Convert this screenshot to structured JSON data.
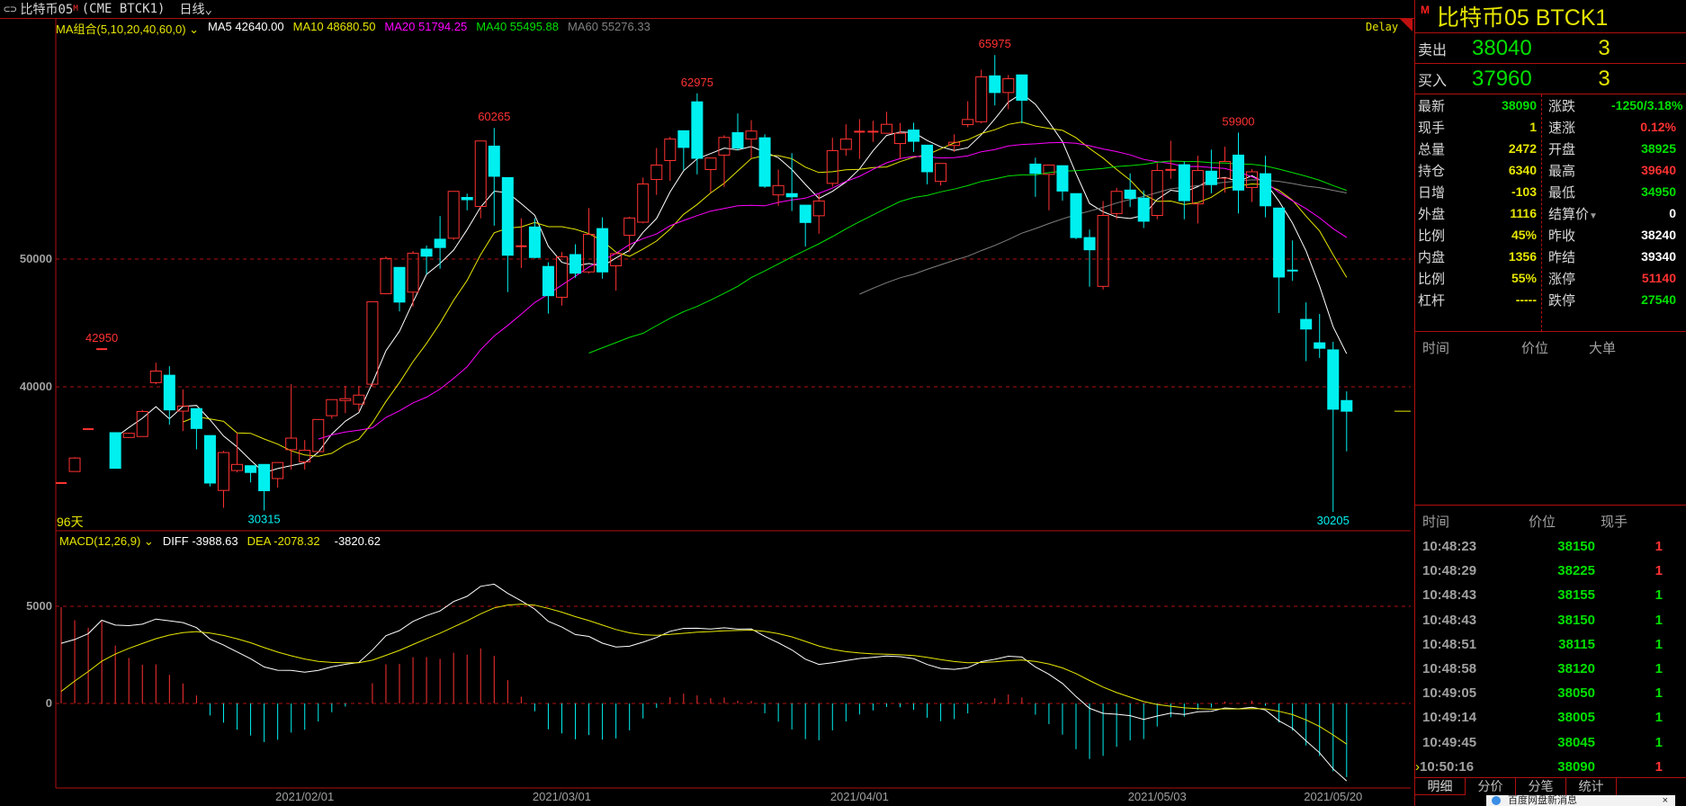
{
  "topbar": {
    "name": "比特币05",
    "badge": "M",
    "code": "(CME BTCK1)",
    "period": "日线"
  },
  "ma_header": {
    "title": "MA组合(5,10,20,40,60,0)",
    "ma5": "MA5 42640.00",
    "ma10": "MA10 48680.50",
    "ma20": "MA20 51794.25",
    "ma40": "MA40 55495.88",
    "ma60": "MA60 55276.33"
  },
  "delay": "Delay",
  "days_label": "96天",
  "macd_header": {
    "title": "MACD(12,26,9)",
    "diff": "DIFF -3988.63",
    "dea": "DEA -2078.32",
    "macd": "-3820.62"
  },
  "colors": {
    "up": "#ff3232",
    "down": "#00f0f0",
    "ma5": "#ffffff",
    "ma10": "#e6e600",
    "ma20": "#ff00ff",
    "ma40": "#00e000",
    "ma60": "#808080",
    "grid": "#b01010"
  },
  "chart_data": {
    "type": "candlestick",
    "y_ticks": [
      {
        "label": "50000",
        "value": 50000
      },
      {
        "label": "40000",
        "value": 40000
      }
    ],
    "macd_ticks": [
      {
        "label": "5000",
        "value": 5000
      },
      {
        "label": "0",
        "value": 0
      }
    ],
    "x_ticks": [
      {
        "label": "2021/02/01",
        "index": 19
      },
      {
        "label": "2021/03/01",
        "index": 38
      },
      {
        "label": "2021/04/01",
        "index": 60
      },
      {
        "label": "2021/05/03",
        "index": 82
      },
      {
        "label": "2021/05/20",
        "index": 95
      }
    ],
    "annotations": [
      {
        "label": "42950",
        "index": 4,
        "kind": "high"
      },
      {
        "label": "60265",
        "index": 33,
        "kind": "high"
      },
      {
        "label": "62975",
        "index": 48,
        "kind": "high"
      },
      {
        "label": "65975",
        "index": 70,
        "kind": "high"
      },
      {
        "label": "59900",
        "index": 88,
        "kind": "high"
      },
      {
        "label": "30315",
        "index": 16,
        "kind": "low"
      },
      {
        "label": "30205",
        "index": 95,
        "kind": "low"
      }
    ],
    "ohlc": [
      [
        32466,
        32466,
        32466,
        32466
      ],
      [
        33370,
        34500,
        33370,
        34425
      ],
      [
        36686,
        36686,
        36686,
        36686
      ],
      [
        42950,
        42950,
        42950,
        42950
      ],
      [
        36410,
        36410,
        33622,
        33622
      ],
      [
        36033,
        36400,
        36000,
        36360
      ],
      [
        36109,
        38200,
        36109,
        38068
      ],
      [
        40329,
        41886,
        40200,
        41233
      ],
      [
        40907,
        41610,
        37038,
        38194
      ],
      [
        38094,
        39801,
        36536,
        38495
      ],
      [
        38294,
        38294,
        35104,
        36737
      ],
      [
        36184,
        36184,
        32200,
        32466
      ],
      [
        31889,
        34978,
        30532,
        34853
      ],
      [
        33446,
        36385,
        33300,
        33923
      ],
      [
        33823,
        33823,
        32517,
        33295
      ],
      [
        33923,
        33923,
        30315,
        31864
      ],
      [
        32818,
        34074,
        32114,
        34074
      ],
      [
        35079,
        40203,
        33521,
        35983
      ],
      [
        34125,
        35832,
        33521,
        35029
      ],
      [
        34928,
        37440,
        34928,
        37440
      ],
      [
        37741,
        38997,
        37500,
        38997
      ],
      [
        38922,
        40078,
        37942,
        39073
      ],
      [
        38646,
        40078,
        38118,
        39349
      ],
      [
        40203,
        46659,
        40000,
        46659
      ],
      [
        47287,
        50201,
        47287,
        50050
      ],
      [
        49347,
        49347,
        45906,
        46634
      ],
      [
        47413,
        50628,
        46282,
        50452
      ],
      [
        50779,
        51055,
        48794,
        50226
      ],
      [
        51557,
        53366,
        49246,
        50904
      ],
      [
        51633,
        55300,
        51507,
        55300
      ],
      [
        54823,
        55124,
        53818,
        54647
      ],
      [
        54120,
        59244,
        53190,
        59244
      ],
      [
        58842,
        60265,
        52612,
        56481
      ],
      [
        56381,
        56381,
        47413,
        50301
      ],
      [
        51005,
        53190,
        49297,
        51005
      ],
      [
        52512,
        53190,
        50050,
        50126
      ],
      [
        49422,
        49750,
        45730,
        47136
      ],
      [
        47011,
        50553,
        46358,
        50176
      ],
      [
        50352,
        51156,
        48543,
        48895
      ],
      [
        48995,
        53994,
        48870,
        51934
      ],
      [
        52386,
        53265,
        48468,
        48995
      ],
      [
        49473,
        50427,
        47538,
        50427
      ],
      [
        51859,
        53316,
        50553,
        53215
      ],
      [
        52889,
        56381,
        52800,
        55878
      ],
      [
        56230,
        58692,
        55024,
        57360
      ],
      [
        57712,
        59571,
        56130,
        59395
      ],
      [
        60048,
        60048,
        56958,
        58742
      ],
      [
        62309,
        62975,
        56632,
        57888
      ],
      [
        57008,
        57913,
        55200,
        57913
      ],
      [
        58139,
        59697,
        55652,
        59521
      ],
      [
        59897,
        61404,
        58516,
        58692
      ],
      [
        59395,
        60877,
        57888,
        60023
      ],
      [
        59496,
        59772,
        55577,
        55702
      ],
      [
        55024,
        57008,
        54170,
        55752
      ],
      [
        55124,
        58290,
        53768,
        54873
      ],
      [
        54220,
        54220,
        50980,
        52864
      ],
      [
        53391,
        55075,
        51985,
        54547
      ],
      [
        55928,
        59496,
        55677,
        58491
      ],
      [
        58591,
        60550,
        58089,
        59395
      ],
      [
        59973,
        60953,
        57838,
        59973
      ],
      [
        59973,
        60827,
        59170,
        59973
      ],
      [
        59848,
        61530,
        59848,
        60550
      ],
      [
        59044,
        60651,
        57838,
        59848
      ],
      [
        60098,
        60676,
        58390,
        59219
      ],
      [
        58918,
        58918,
        55853,
        56833
      ],
      [
        56079,
        57486,
        55752,
        57486
      ],
      [
        58893,
        59772,
        58390,
        59144
      ],
      [
        60525,
        62359,
        60324,
        60927
      ],
      [
        60751,
        64820,
        60626,
        64268
      ],
      [
        64343,
        65975,
        62033,
        63037
      ],
      [
        63037,
        64418,
        61731,
        64117
      ],
      [
        64418,
        64418,
        60626,
        62434
      ],
      [
        57436,
        57938,
        54873,
        56707
      ],
      [
        56632,
        57360,
        53818,
        57360
      ],
      [
        57310,
        57310,
        54572,
        55325
      ],
      [
        55124,
        55124,
        51557,
        51683
      ],
      [
        51683,
        52311,
        47840,
        50728
      ],
      [
        47865,
        54547,
        47614,
        53416
      ],
      [
        53567,
        55577,
        53140,
        55300
      ],
      [
        55401,
        56707,
        54070,
        54748
      ],
      [
        54773,
        55376,
        52436,
        52964
      ],
      [
        53416,
        57511,
        53115,
        56933
      ],
      [
        56983,
        59269,
        56280,
        56983
      ],
      [
        57385,
        57637,
        53115,
        54572
      ],
      [
        54321,
        58089,
        52788,
        56933
      ],
      [
        56883,
        58566,
        55150,
        55828
      ],
      [
        56330,
        58792,
        55200,
        57637
      ],
      [
        58139,
        59900,
        53567,
        55401
      ],
      [
        55602,
        57034,
        54471,
        56833
      ],
      [
        56682,
        58089,
        53266,
        54170
      ],
      [
        53994,
        53994,
        45780,
        48593
      ],
      [
        49100,
        51457,
        48292,
        49096
      ],
      [
        45278,
        46609,
        42012,
        44524
      ],
      [
        43444,
        45705,
        42263,
        43017
      ],
      [
        42891,
        43519,
        30205,
        38244
      ],
      [
        38925,
        39640,
        34950,
        38090
      ]
    ],
    "ma_periods": [
      5,
      10,
      20,
      40,
      60
    ],
    "macd_params": [
      12,
      26,
      9
    ]
  },
  "quote": {
    "title": "比特币05  BTCK1",
    "badge": "M",
    "ask": {
      "label": "卖出",
      "price": "38040",
      "qty": "3"
    },
    "bid": {
      "label": "买入",
      "price": "37960",
      "qty": "3"
    },
    "stats": [
      {
        "l": "最新",
        "v": "38090",
        "vc": "#00e000",
        "l2": "涨跌",
        "v2": "-1250/3.18%",
        "v2c": "#00e000"
      },
      {
        "l": "现手",
        "v": "1",
        "vc": "#e6e600",
        "l2": "速涨",
        "v2": "0.12%",
        "v2c": "#ff3232"
      },
      {
        "l": "总量",
        "v": "2472",
        "vc": "#e6e600",
        "l2": "开盘",
        "v2": "38925",
        "v2c": "#00e000"
      },
      {
        "l": "持仓",
        "v": "6340",
        "vc": "#e6e600",
        "l2": "最高",
        "v2": "39640",
        "v2c": "#ff3232"
      },
      {
        "l": "日增",
        "v": "-103",
        "vc": "#e6e600",
        "l2": "最低",
        "v2": "34950",
        "v2c": "#00e000"
      },
      {
        "l": "外盘",
        "v": "1116",
        "vc": "#e6e600",
        "l2": "结算价",
        "v2": "0",
        "v2c": "#ffffff"
      },
      {
        "l": "比例",
        "v": "45%",
        "vc": "#e6e600",
        "l2": "昨收",
        "v2": "38240",
        "v2c": "#ffffff"
      },
      {
        "l": "内盘",
        "v": "1356",
        "vc": "#e6e600",
        "l2": "昨结",
        "v2": "39340",
        "v2c": "#ffffff"
      },
      {
        "l": "比例",
        "v": "55%",
        "vc": "#e6e600",
        "l2": "涨停",
        "v2": "51140",
        "v2c": "#ff3232"
      },
      {
        "l": "杠杆",
        "v": "-----",
        "vc": "#e6e600",
        "l2": "跌停",
        "v2": "27540",
        "v2c": "#00e000"
      }
    ],
    "big_order_header": {
      "time": "时间",
      "price": "价位",
      "big": "大单"
    },
    "ticks_header": {
      "time": "时间",
      "price": "价位",
      "vol": "现手"
    },
    "ticks": [
      {
        "time": "10:48:23",
        "price": "38150",
        "vol": "1",
        "vc": "#ff3232"
      },
      {
        "time": "10:48:29",
        "price": "38225",
        "vol": "1",
        "vc": "#ff3232"
      },
      {
        "time": "10:48:43",
        "price": "38155",
        "vol": "1",
        "vc": "#00e000"
      },
      {
        "time": "10:48:43",
        "price": "38150",
        "vol": "1",
        "vc": "#00e000"
      },
      {
        "time": "10:48:51",
        "price": "38115",
        "vol": "1",
        "vc": "#00e000"
      },
      {
        "time": "10:48:58",
        "price": "38120",
        "vol": "1",
        "vc": "#00e000"
      },
      {
        "time": "10:49:05",
        "price": "38050",
        "vol": "1",
        "vc": "#00e000"
      },
      {
        "time": "10:49:14",
        "price": "38005",
        "vol": "1",
        "vc": "#00e000"
      },
      {
        "time": "10:49:45",
        "price": "38045",
        "vol": "1",
        "vc": "#00e000"
      },
      {
        "time": "10:50:16",
        "price": "38090",
        "vol": "1",
        "vc": "#ff3232"
      }
    ],
    "tabs": [
      "明细",
      "分价",
      "分笔",
      "统计"
    ]
  },
  "popup": {
    "text": "百度网盘新消息",
    "close": "×"
  }
}
